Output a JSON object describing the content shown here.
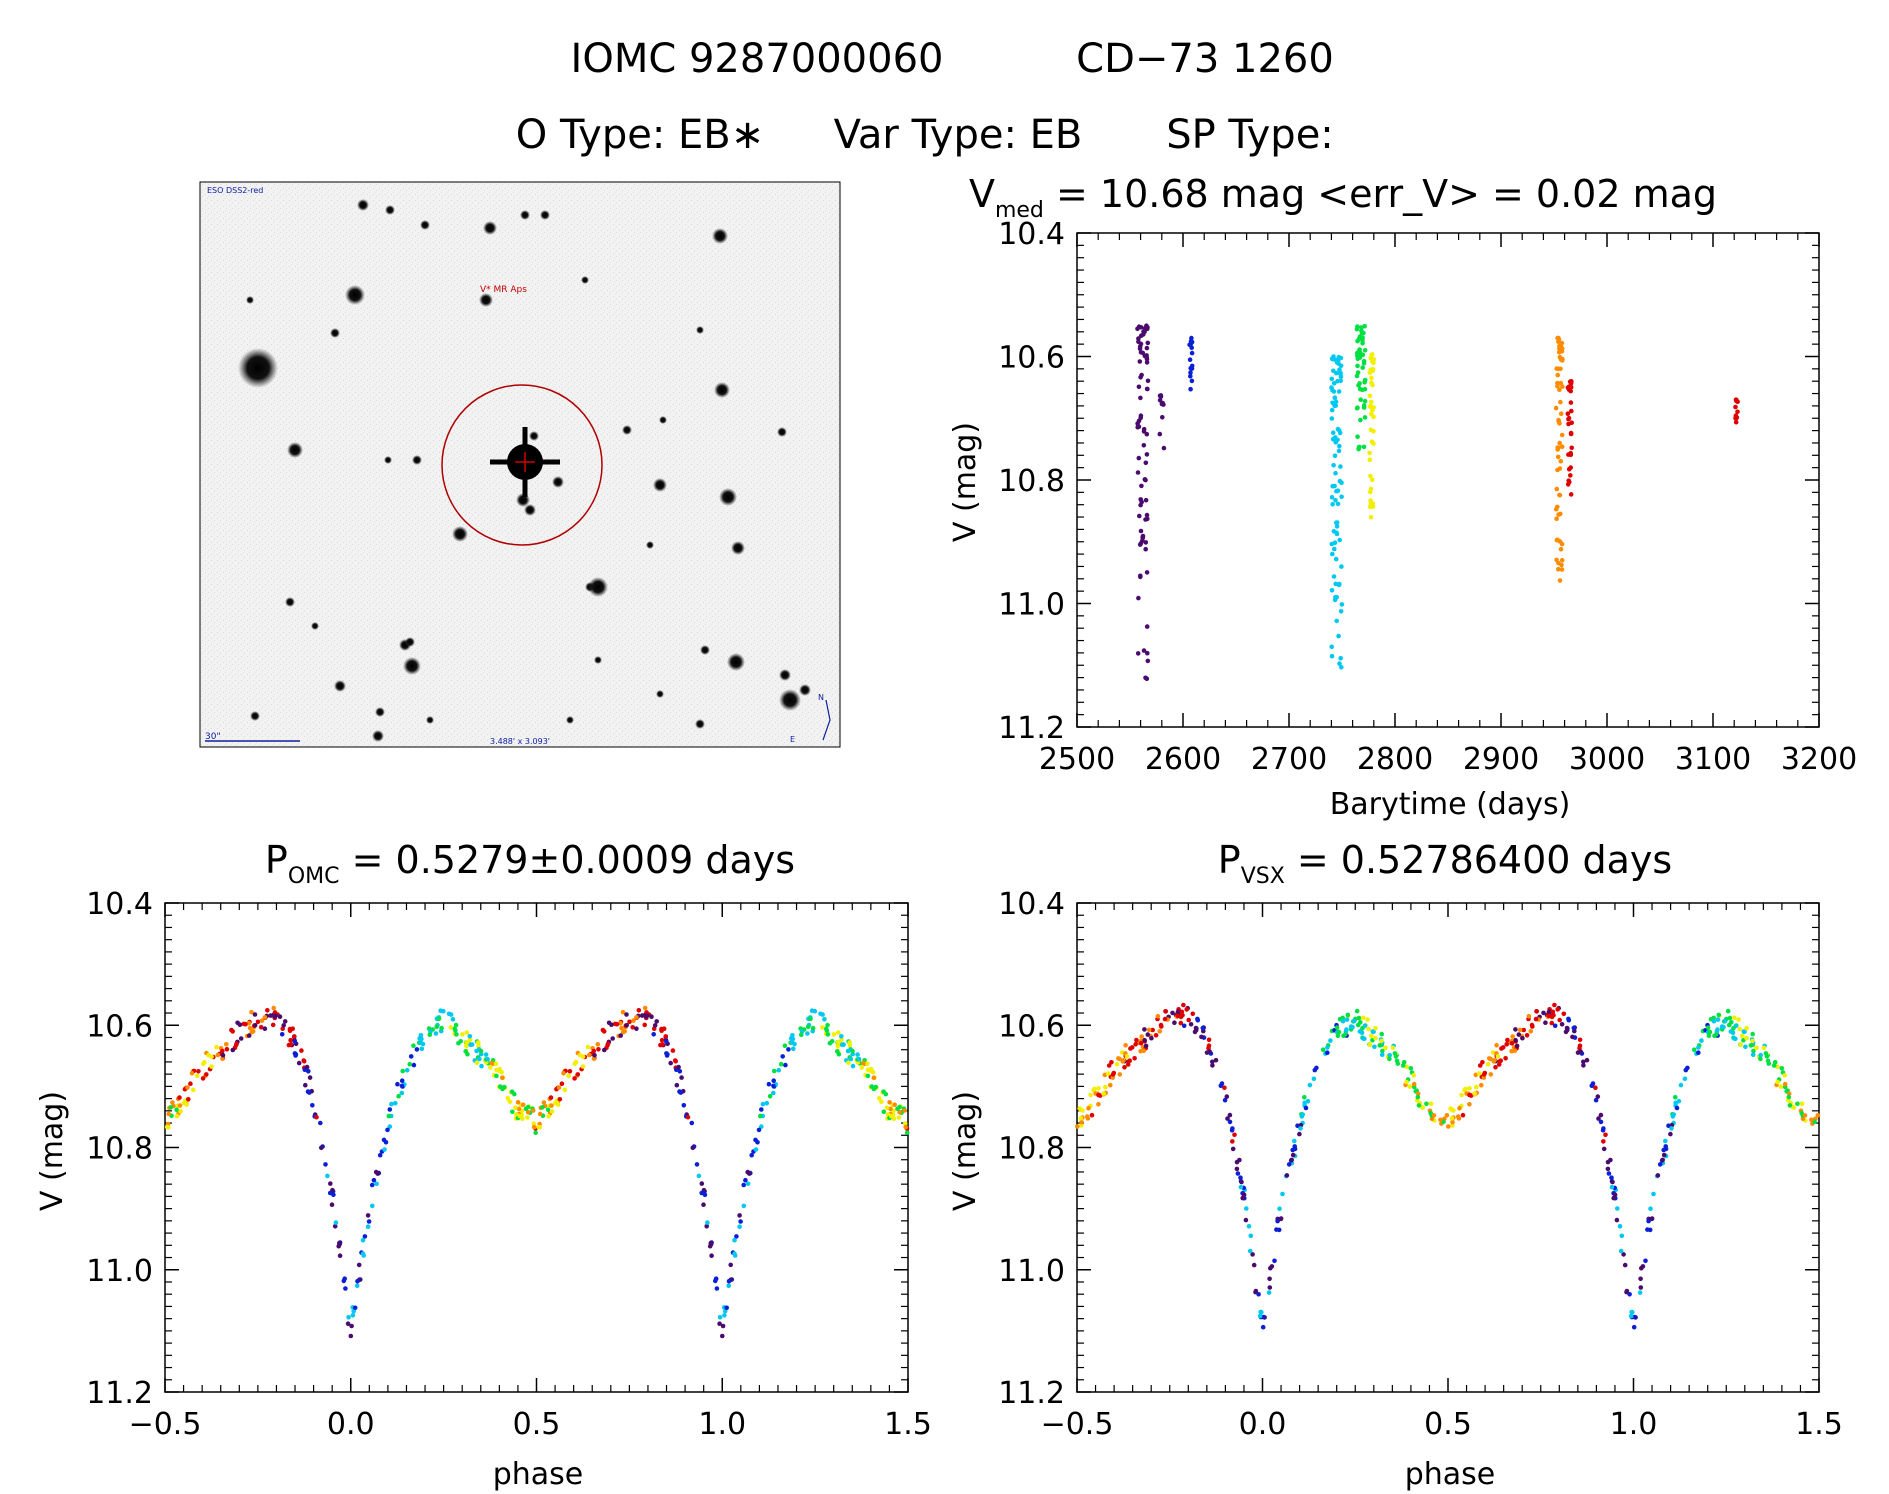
{
  "header": {
    "line1_id": "IOMC 9287000060",
    "line1_name": "CD−73  1260",
    "line2_otype": "O Type: EB∗",
    "line2_vartype": "Var Type: EB",
    "line2_sptype": "SP Type:"
  },
  "finder": {
    "survey_label": "ESO DSS2-red",
    "target_label": "V* MR Aps",
    "scale_label": "30\"",
    "size_label": "3.488' x 3.093'",
    "north_label": "N",
    "east_label": "E"
  },
  "colors": {
    "palette": [
      "#4b0b6e",
      "#0a1fd6",
      "#00c8f0",
      "#00e040",
      "#f0f000",
      "#ff8c00",
      "#e00000"
    ],
    "finder_circle": "#b00000",
    "finder_text": "#c00000",
    "finder_blue_text": "#1020a0"
  },
  "chart_data": [
    {
      "id": "lightcurve",
      "type": "scatter",
      "title_main": "V",
      "title_sub": "med",
      "title_rest": " = 10.68 mag <err_V> = 0.02 mag",
      "xlabel": "Barytime (days)",
      "ylabel": "V (mag)",
      "xlim": [
        2500,
        3200
      ],
      "ylim": [
        11.2,
        10.4
      ],
      "xticks": [
        "2500",
        "2600",
        "2700",
        "2800",
        "2900",
        "3000",
        "3100",
        "3200"
      ],
      "yticks": [
        "10.4",
        "10.6",
        "10.8",
        "11.0",
        "11.2"
      ],
      "groups": [
        {
          "x_center": 2562,
          "x_spread": 5,
          "y_range": [
            10.55,
            11.14
          ],
          "n": 80,
          "color_index": 0
        },
        {
          "x_center": 2580,
          "x_spread": 2,
          "y_range": [
            10.66,
            10.76
          ],
          "n": 10,
          "color_index": 0
        },
        {
          "x_center": 2607,
          "x_spread": 2,
          "y_range": [
            10.57,
            10.67
          ],
          "n": 15,
          "color_index": 1
        },
        {
          "x_center": 2745,
          "x_spread": 5,
          "y_range": [
            10.6,
            11.11
          ],
          "n": 90,
          "color_index": 2
        },
        {
          "x_center": 2768,
          "x_spread": 4,
          "y_range": [
            10.55,
            10.76
          ],
          "n": 50,
          "color_index": 3
        },
        {
          "x_center": 2778,
          "x_spread": 2,
          "y_range": [
            10.58,
            10.88
          ],
          "n": 40,
          "color_index": 4
        },
        {
          "x_center": 2955,
          "x_spread": 3,
          "y_range": [
            10.57,
            10.99
          ],
          "n": 60,
          "color_index": 5
        },
        {
          "x_center": 2965,
          "x_spread": 2,
          "y_range": [
            10.64,
            10.84
          ],
          "n": 30,
          "color_index": 6
        },
        {
          "x_center": 3122,
          "x_spread": 1.5,
          "y_range": [
            10.67,
            10.71
          ],
          "n": 12,
          "color_index": 6
        }
      ]
    },
    {
      "id": "phase_omc",
      "type": "scatter",
      "title_main": "P",
      "title_sub": "OMC",
      "title_rest": " = 0.5279±0.0009 days",
      "xlabel": "phase",
      "ylabel": "V (mag)",
      "xlim": [
        -0.5,
        1.5
      ],
      "ylim": [
        11.2,
        10.4
      ],
      "xticks": [
        "−0.5",
        "0.0",
        "0.5",
        "1.0",
        "1.5"
      ],
      "yticks": [
        "10.4",
        "10.6",
        "10.8",
        "11.0",
        "11.2"
      ],
      "curve": {
        "nodes_phase": [
          0.0,
          0.02,
          0.05,
          0.1,
          0.15,
          0.2,
          0.25,
          0.3,
          0.35,
          0.4,
          0.45,
          0.5,
          0.55,
          0.6,
          0.65,
          0.7,
          0.75,
          0.8,
          0.85,
          0.9,
          0.95,
          1.0
        ],
        "nodes_mag": [
          11.1,
          11.02,
          10.9,
          10.76,
          10.67,
          10.61,
          10.59,
          10.62,
          10.65,
          10.69,
          10.74,
          10.76,
          10.72,
          10.67,
          10.64,
          10.61,
          10.59,
          10.58,
          10.63,
          10.72,
          10.88,
          11.1
        ],
        "n_points": 320,
        "scatter_mag": 0.02
      }
    },
    {
      "id": "phase_vsx",
      "type": "scatter",
      "title_main": "P",
      "title_sub": "VSX",
      "title_rest": " = 0.52786400 days",
      "xlabel": "phase",
      "ylabel": "V (mag)",
      "xlim": [
        -0.5,
        1.5
      ],
      "ylim": [
        11.2,
        10.4
      ],
      "xticks": [
        "−0.5",
        "0.0",
        "0.5",
        "1.0",
        "1.5"
      ],
      "yticks": [
        "10.4",
        "10.6",
        "10.8",
        "11.0",
        "11.2"
      ],
      "curve": {
        "nodes_phase": [
          0.0,
          0.02,
          0.05,
          0.1,
          0.15,
          0.2,
          0.25,
          0.3,
          0.35,
          0.4,
          0.45,
          0.5,
          0.55,
          0.6,
          0.65,
          0.7,
          0.75,
          0.8,
          0.85,
          0.9,
          0.95,
          1.0
        ],
        "nodes_mag": [
          11.1,
          11.02,
          10.9,
          10.76,
          10.67,
          10.61,
          10.59,
          10.62,
          10.65,
          10.69,
          10.74,
          10.76,
          10.72,
          10.67,
          10.64,
          10.61,
          10.59,
          10.58,
          10.63,
          10.72,
          10.88,
          11.1
        ],
        "n_points": 320,
        "scatter_mag": 0.02
      }
    }
  ]
}
